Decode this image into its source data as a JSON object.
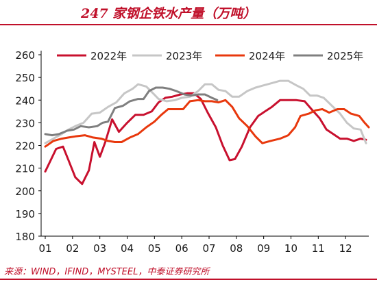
{
  "title": "247 家钢企铁水产量（万吨）",
  "source": "来源：WIND，IFIND，MYSTEEL，中泰证券研究所",
  "chart_data": {
    "type": "line",
    "title": "247 家钢企铁水产量（万吨）",
    "xlabel": "",
    "ylabel": "",
    "ylim": [
      180,
      260
    ],
    "yticks": [
      "180",
      "190",
      "200",
      "210",
      "220",
      "230",
      "240",
      "250",
      "260"
    ],
    "xlim": [
      1,
      12.85
    ],
    "xticks": [
      "01",
      "02",
      "03",
      "04",
      "05",
      "06",
      "07",
      "08",
      "09",
      "10",
      "11",
      "12"
    ],
    "grid": false,
    "legend": "top",
    "series": [
      {
        "name": "2022年",
        "color": "#c8102e",
        "points": [
          [
            1.0,
            208.5
          ],
          [
            1.2,
            213.5
          ],
          [
            1.4,
            218.5
          ],
          [
            1.65,
            219.5
          ],
          [
            1.85,
            213.5
          ],
          [
            2.1,
            206
          ],
          [
            2.35,
            203
          ],
          [
            2.6,
            209
          ],
          [
            2.8,
            221.5
          ],
          [
            3.0,
            215
          ],
          [
            3.2,
            221.5
          ],
          [
            3.45,
            231.5
          ],
          [
            3.7,
            226
          ],
          [
            4.0,
            230
          ],
          [
            4.3,
            233.5
          ],
          [
            4.6,
            233.5
          ],
          [
            4.9,
            235
          ],
          [
            5.15,
            239
          ],
          [
            5.4,
            241
          ],
          [
            5.65,
            241.5
          ],
          [
            5.95,
            242.5
          ],
          [
            6.2,
            243
          ],
          [
            6.45,
            243
          ],
          [
            6.7,
            240.5
          ],
          [
            6.95,
            234.5
          ],
          [
            7.25,
            228
          ],
          [
            7.5,
            220
          ],
          [
            7.75,
            213.5
          ],
          [
            7.95,
            214
          ],
          [
            8.2,
            219.5
          ],
          [
            8.5,
            228
          ],
          [
            8.8,
            233
          ],
          [
            9.05,
            235
          ],
          [
            9.3,
            237
          ],
          [
            9.6,
            240
          ],
          [
            9.9,
            240
          ],
          [
            10.2,
            240
          ],
          [
            10.5,
            239.5
          ],
          [
            10.75,
            236
          ],
          [
            11.05,
            232
          ],
          [
            11.3,
            227
          ],
          [
            11.55,
            225
          ],
          [
            11.8,
            223
          ],
          [
            12.05,
            223
          ],
          [
            12.3,
            222
          ],
          [
            12.55,
            223
          ],
          [
            12.75,
            222.5
          ]
        ]
      },
      {
        "name": "2023年",
        "color": "#c6c6c6",
        "points": [
          [
            1.0,
            221
          ],
          [
            1.3,
            223
          ],
          [
            1.6,
            225
          ],
          [
            1.85,
            227
          ],
          [
            2.1,
            228.5
          ],
          [
            2.4,
            230
          ],
          [
            2.7,
            234
          ],
          [
            3.0,
            234.5
          ],
          [
            3.3,
            237
          ],
          [
            3.6,
            239
          ],
          [
            3.9,
            243
          ],
          [
            4.2,
            245
          ],
          [
            4.4,
            247
          ],
          [
            4.7,
            246
          ],
          [
            4.95,
            243
          ],
          [
            5.15,
            240.5
          ],
          [
            5.45,
            239.5
          ],
          [
            5.75,
            240
          ],
          [
            6.0,
            241
          ],
          [
            6.3,
            241.5
          ],
          [
            6.6,
            244
          ],
          [
            6.85,
            247
          ],
          [
            7.1,
            247
          ],
          [
            7.35,
            244.5
          ],
          [
            7.6,
            244
          ],
          [
            7.85,
            241.5
          ],
          [
            8.1,
            241.5
          ],
          [
            8.4,
            244
          ],
          [
            8.7,
            245.5
          ],
          [
            9.0,
            246.5
          ],
          [
            9.3,
            247.5
          ],
          [
            9.6,
            248.5
          ],
          [
            9.9,
            248.5
          ],
          [
            10.2,
            246.5
          ],
          [
            10.45,
            245
          ],
          [
            10.7,
            242
          ],
          [
            10.95,
            242
          ],
          [
            11.2,
            241
          ],
          [
            11.5,
            237.5
          ],
          [
            11.8,
            234
          ],
          [
            12.05,
            230
          ],
          [
            12.3,
            227.5
          ],
          [
            12.55,
            227
          ],
          [
            12.75,
            221
          ]
        ]
      },
      {
        "name": "2024年",
        "color": "#e8380d",
        "points": [
          [
            1.0,
            219.5
          ],
          [
            1.3,
            222
          ],
          [
            1.6,
            223
          ],
          [
            1.85,
            223.5
          ],
          [
            2.1,
            224
          ],
          [
            2.45,
            224.5
          ],
          [
            2.75,
            223.5
          ],
          [
            3.05,
            223
          ],
          [
            3.3,
            222
          ],
          [
            3.55,
            221.5
          ],
          [
            3.8,
            221.5
          ],
          [
            4.1,
            223.5
          ],
          [
            4.4,
            225
          ],
          [
            4.7,
            228
          ],
          [
            5.0,
            230.5
          ],
          [
            5.25,
            233.5
          ],
          [
            5.5,
            236
          ],
          [
            5.8,
            236
          ],
          [
            6.05,
            236
          ],
          [
            6.3,
            239.5
          ],
          [
            6.6,
            240
          ],
          [
            6.85,
            239.5
          ],
          [
            7.1,
            239.5
          ],
          [
            7.35,
            239
          ],
          [
            7.6,
            240
          ],
          [
            7.85,
            237
          ],
          [
            8.1,
            232
          ],
          [
            8.4,
            228.5
          ],
          [
            8.7,
            224
          ],
          [
            8.95,
            221
          ],
          [
            9.25,
            222
          ],
          [
            9.6,
            223
          ],
          [
            9.9,
            224.5
          ],
          [
            10.15,
            228
          ],
          [
            10.35,
            233
          ],
          [
            10.65,
            234
          ],
          [
            10.9,
            235.5
          ],
          [
            11.15,
            236
          ],
          [
            11.4,
            234.5
          ],
          [
            11.7,
            236
          ],
          [
            11.95,
            236
          ],
          [
            12.2,
            234
          ],
          [
            12.5,
            233
          ],
          [
            12.7,
            230
          ],
          [
            12.85,
            228
          ]
        ]
      },
      {
        "name": "2025年",
        "color": "#7f7f7f",
        "points": [
          [
            1.0,
            225
          ],
          [
            1.25,
            224.5
          ],
          [
            1.5,
            225
          ],
          [
            1.8,
            226.5
          ],
          [
            2.05,
            227
          ],
          [
            2.3,
            228.5
          ],
          [
            2.6,
            228
          ],
          [
            2.9,
            228.5
          ],
          [
            3.1,
            230
          ],
          [
            3.3,
            230.5
          ],
          [
            3.55,
            236.5
          ],
          [
            3.85,
            237.5
          ],
          [
            4.1,
            239.5
          ],
          [
            4.4,
            240.5
          ],
          [
            4.6,
            240.5
          ],
          [
            4.8,
            244
          ],
          [
            5.05,
            245.5
          ],
          [
            5.3,
            245.5
          ],
          [
            5.55,
            245
          ],
          [
            5.8,
            244
          ],
          [
            6.1,
            242.5
          ],
          [
            6.35,
            242
          ],
          [
            6.6,
            242.5
          ],
          [
            6.85,
            242.5
          ],
          [
            7.1,
            241
          ],
          [
            7.3,
            240
          ]
        ]
      }
    ]
  }
}
